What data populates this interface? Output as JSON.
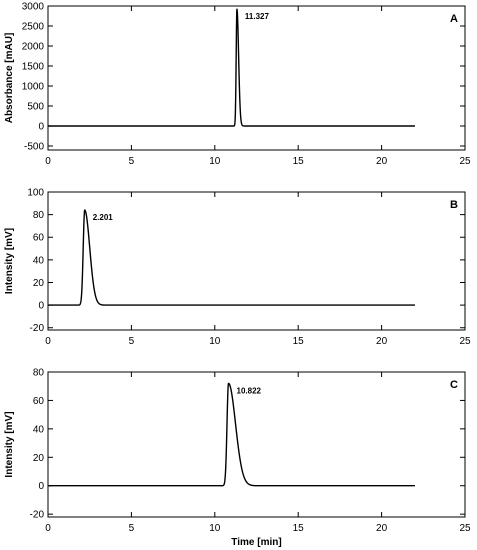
{
  "chart_data": [
    {
      "type": "line",
      "panel_label": "A",
      "ylabel": "Absorbance [mAU]",
      "xlabel": "",
      "xlim": [
        0,
        25
      ],
      "ylim": [
        -600,
        3000
      ],
      "xticks": [
        0,
        5,
        10,
        15,
        20,
        25
      ],
      "yticks": [
        -500,
        0,
        500,
        1000,
        1500,
        2000,
        2500,
        3000
      ],
      "grid": false,
      "trace": {
        "x_start": 0.0,
        "x_end": 22.0,
        "baseline": 0,
        "peak_time": 11.327,
        "peak_height": 2920,
        "rise": 0.045,
        "tail": 0.1
      },
      "peak_label": {
        "text": "11.327",
        "x": 11.327,
        "y": 2920
      }
    },
    {
      "type": "line",
      "panel_label": "B",
      "ylabel": "Intensity [mV]",
      "xlabel": "",
      "xlim": [
        0,
        25
      ],
      "ylim": [
        -22,
        100
      ],
      "xticks": [
        0,
        5,
        10,
        15,
        20,
        25
      ],
      "yticks": [
        -20,
        0,
        20,
        40,
        60,
        80,
        100
      ],
      "grid": false,
      "trace": {
        "x_start": 0.0,
        "x_end": 22.0,
        "baseline": 0,
        "peak_time": 2.201,
        "peak_height": 84,
        "rise": 0.09,
        "tail": 0.3
      },
      "peak_label": {
        "text": "2.201",
        "x": 2.201,
        "y": 84
      }
    },
    {
      "type": "line",
      "panel_label": "C",
      "ylabel": "Intensity [mV]",
      "xlabel": "Time [min]",
      "xlim": [
        0,
        25
      ],
      "ylim": [
        -22,
        80
      ],
      "xticks": [
        0,
        5,
        10,
        15,
        20,
        25
      ],
      "yticks": [
        -20,
        0,
        20,
        40,
        60,
        80
      ],
      "grid": false,
      "trace": {
        "x_start": 0.0,
        "x_end": 22.0,
        "baseline": 0,
        "peak_time": 10.822,
        "peak_height": 72,
        "rise": 0.09,
        "tail": 0.42
      },
      "peak_label": {
        "text": "10.822",
        "x": 10.822,
        "y": 72
      }
    }
  ]
}
